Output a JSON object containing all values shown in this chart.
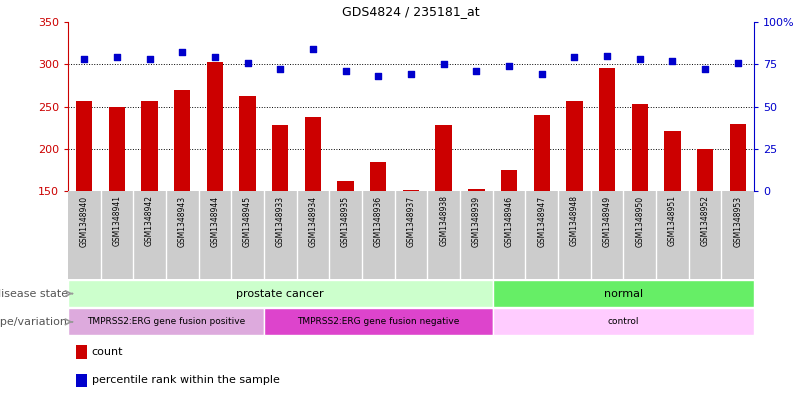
{
  "title": "GDS4824 / 235181_at",
  "samples": [
    "GSM1348940",
    "GSM1348941",
    "GSM1348942",
    "GSM1348943",
    "GSM1348944",
    "GSM1348945",
    "GSM1348933",
    "GSM1348934",
    "GSM1348935",
    "GSM1348936",
    "GSM1348937",
    "GSM1348938",
    "GSM1348939",
    "GSM1348946",
    "GSM1348947",
    "GSM1348948",
    "GSM1348949",
    "GSM1348950",
    "GSM1348951",
    "GSM1348952",
    "GSM1348953"
  ],
  "bar_values": [
    257,
    250,
    257,
    270,
    303,
    262,
    228,
    237,
    162,
    184,
    151,
    228,
    152,
    175,
    240,
    257,
    296,
    253,
    221,
    200,
    229
  ],
  "dot_values_pct": [
    78,
    79,
    78,
    82,
    79,
    76,
    72,
    84,
    71,
    68,
    69,
    75,
    71,
    74,
    69,
    79,
    80,
    78,
    77,
    72,
    76
  ],
  "bar_color": "#cc0000",
  "dot_color": "#0000cc",
  "ylim_left": [
    150,
    350
  ],
  "ylim_right": [
    0,
    100
  ],
  "yticks_left": [
    150,
    200,
    250,
    300,
    350
  ],
  "yticks_right": [
    0,
    25,
    50,
    75,
    100
  ],
  "ytick_labels_right": [
    "0",
    "25",
    "50",
    "75",
    "100%"
  ],
  "grid_pct_values": [
    25,
    50,
    75
  ],
  "disease_state_groups": [
    {
      "label": "prostate cancer",
      "start": 0,
      "end": 13,
      "color": "#ccffcc"
    },
    {
      "label": "normal",
      "start": 13,
      "end": 21,
      "color": "#66ee66"
    }
  ],
  "genotype_groups": [
    {
      "label": "TMPRSS2:ERG gene fusion positive",
      "start": 0,
      "end": 6,
      "color": "#ddaadd"
    },
    {
      "label": "TMPRSS2:ERG gene fusion negative",
      "start": 6,
      "end": 13,
      "color": "#dd44cc"
    },
    {
      "label": "control",
      "start": 13,
      "end": 21,
      "color": "#ffccff"
    }
  ],
  "separator_col": 13,
  "bg_color": "#ffffff",
  "sample_box_color": "#cccccc",
  "label_arrow_color": "#999999",
  "disease_label": "disease state",
  "genotype_label": "genotype/variation",
  "legend_count": "count",
  "legend_percentile": "percentile rank within the sample",
  "legend_count_color": "#cc0000",
  "legend_dot_color": "#0000cc"
}
